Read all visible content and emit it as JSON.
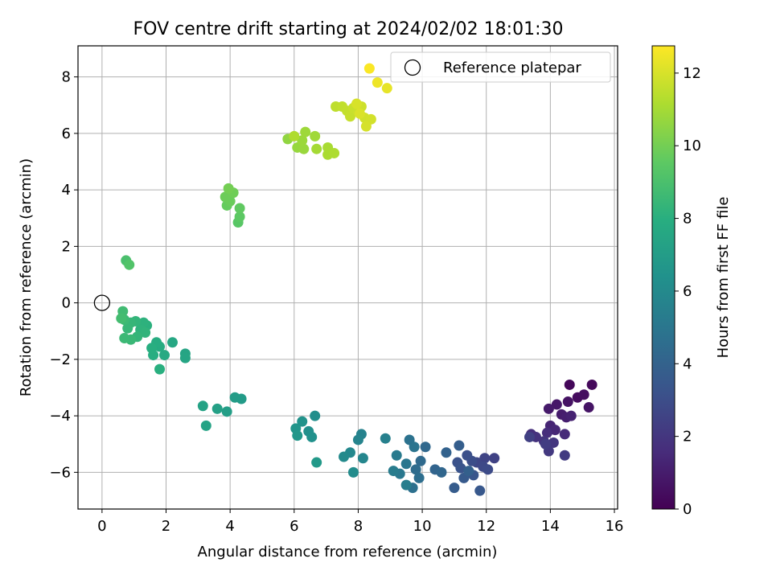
{
  "chart_data": {
    "type": "scatter",
    "title": "FOV centre drift starting at 2024/02/02 18:01:30",
    "xlabel": "Angular distance from reference (arcmin)",
    "ylabel": "Rotation from reference (arcmin)",
    "xlim": [
      -0.75,
      16.1
    ],
    "ylim": [
      -7.3,
      9.1
    ],
    "xticks": [
      "0",
      "2",
      "4",
      "6",
      "8",
      "10",
      "12",
      "14",
      "16"
    ],
    "yticks": [
      "−6",
      "−4",
      "−2",
      "0",
      "2",
      "4",
      "6",
      "8"
    ],
    "grid": true,
    "legend": {
      "placement": "top-right",
      "entries": [
        "Reference platepar"
      ]
    },
    "reference_point": {
      "x": 0,
      "y": 0
    },
    "colorbar": {
      "label": "Hours from first FF file",
      "colormap": "viridis",
      "range": [
        0,
        12.75
      ],
      "ticks": [
        "0",
        "2",
        "4",
        "6",
        "8",
        "10",
        "12"
      ]
    },
    "points": [
      [
        14.6,
        -2.9,
        0.2
      ],
      [
        15.3,
        -2.9,
        0.3
      ],
      [
        14.85,
        -3.35,
        0.4
      ],
      [
        15.05,
        -3.25,
        0.5
      ],
      [
        14.55,
        -3.5,
        0.6
      ],
      [
        15.2,
        -3.7,
        0.7
      ],
      [
        14.2,
        -3.6,
        0.8
      ],
      [
        13.95,
        -3.75,
        0.9
      ],
      [
        14.35,
        -3.95,
        1.0
      ],
      [
        14.5,
        -4.05,
        1.1
      ],
      [
        14.65,
        -4.0,
        1.2
      ],
      [
        14.0,
        -4.35,
        1.3
      ],
      [
        14.15,
        -4.5,
        1.4
      ],
      [
        14.45,
        -4.65,
        1.5
      ],
      [
        13.9,
        -4.6,
        1.6
      ],
      [
        13.4,
        -4.65,
        1.7
      ],
      [
        13.55,
        -4.75,
        1.8
      ],
      [
        13.8,
        -4.9,
        1.9
      ],
      [
        14.1,
        -4.95,
        2.0
      ],
      [
        13.95,
        -5.25,
        2.1
      ],
      [
        14.45,
        -5.4,
        2.2
      ],
      [
        13.85,
        -5.0,
        2.3
      ],
      [
        13.35,
        -4.75,
        2.4
      ],
      [
        12.25,
        -5.5,
        2.5
      ],
      [
        11.95,
        -5.5,
        2.6
      ],
      [
        11.7,
        -5.65,
        2.7
      ],
      [
        11.9,
        -5.8,
        2.8
      ],
      [
        12.05,
        -5.9,
        2.9
      ],
      [
        11.55,
        -5.6,
        3.0
      ],
      [
        11.4,
        -5.4,
        3.1
      ],
      [
        11.1,
        -5.65,
        3.2
      ],
      [
        11.2,
        -5.85,
        3.3
      ],
      [
        11.6,
        -6.1,
        3.4
      ],
      [
        11.8,
        -6.65,
        3.5
      ],
      [
        11.3,
        -6.2,
        3.6
      ],
      [
        11.0,
        -6.55,
        3.7
      ],
      [
        11.15,
        -5.05,
        3.8
      ],
      [
        11.45,
        -5.95,
        3.9
      ],
      [
        10.75,
        -5.3,
        4.0
      ],
      [
        10.4,
        -5.9,
        4.1
      ],
      [
        10.6,
        -6.0,
        4.2
      ],
      [
        10.1,
        -5.1,
        4.3
      ],
      [
        9.95,
        -5.6,
        4.4
      ],
      [
        9.8,
        -5.9,
        4.5
      ],
      [
        9.9,
        -6.2,
        4.6
      ],
      [
        9.7,
        -6.55,
        4.7
      ],
      [
        9.6,
        -4.85,
        4.8
      ],
      [
        9.75,
        -5.1,
        4.9
      ],
      [
        9.5,
        -5.7,
        5.0
      ],
      [
        9.3,
        -6.05,
        5.1
      ],
      [
        9.2,
        -5.4,
        5.2
      ],
      [
        9.1,
        -5.95,
        5.3
      ],
      [
        9.5,
        -6.45,
        5.4
      ],
      [
        8.85,
        -4.8,
        5.5
      ],
      [
        8.1,
        -4.65,
        5.6
      ],
      [
        8.0,
        -4.85,
        5.7
      ],
      [
        8.15,
        -5.5,
        5.8
      ],
      [
        7.75,
        -5.3,
        5.9
      ],
      [
        7.55,
        -5.45,
        6.0
      ],
      [
        7.85,
        -6.0,
        6.1
      ],
      [
        6.65,
        -4.0,
        6.2
      ],
      [
        6.45,
        -4.55,
        6.3
      ],
      [
        6.55,
        -4.75,
        6.4
      ],
      [
        6.25,
        -4.2,
        6.5
      ],
      [
        6.05,
        -4.45,
        6.6
      ],
      [
        6.1,
        -4.7,
        6.7
      ],
      [
        6.7,
        -5.65,
        6.8
      ],
      [
        4.35,
        -3.4,
        6.9
      ],
      [
        4.15,
        -3.35,
        7.0
      ],
      [
        3.9,
        -3.85,
        7.1
      ],
      [
        3.6,
        -3.75,
        7.2
      ],
      [
        3.15,
        -3.65,
        7.3
      ],
      [
        3.25,
        -4.35,
        7.35
      ],
      [
        2.6,
        -1.8,
        7.4
      ],
      [
        2.6,
        -1.95,
        7.5
      ],
      [
        2.2,
        -1.4,
        7.6
      ],
      [
        1.95,
        -1.85,
        7.7
      ],
      [
        1.8,
        -1.55,
        7.8
      ],
      [
        1.7,
        -1.4,
        7.85
      ],
      [
        1.6,
        -1.85,
        7.9
      ],
      [
        1.55,
        -1.6,
        7.95
      ],
      [
        1.8,
        -2.35,
        8.0
      ],
      [
        1.4,
        -0.8,
        8.1
      ],
      [
        1.3,
        -0.7,
        8.15
      ],
      [
        1.2,
        -0.95,
        8.2
      ],
      [
        1.35,
        -1.05,
        8.25
      ],
      [
        1.05,
        -0.65,
        8.3
      ],
      [
        1.1,
        -1.2,
        8.35
      ],
      [
        0.9,
        -0.7,
        8.4
      ],
      [
        0.8,
        -0.9,
        8.45
      ],
      [
        0.9,
        -1.3,
        8.5
      ],
      [
        0.7,
        -1.25,
        8.55
      ],
      [
        0.7,
        -0.6,
        8.6
      ],
      [
        0.65,
        -0.3,
        8.7
      ],
      [
        0.6,
        -0.55,
        8.8
      ],
      [
        0.75,
        1.5,
        9.0
      ],
      [
        0.85,
        1.35,
        9.2
      ],
      [
        4.25,
        2.85,
        9.4
      ],
      [
        4.3,
        3.05,
        9.5
      ],
      [
        4.3,
        3.35,
        9.6
      ],
      [
        3.9,
        3.45,
        9.7
      ],
      [
        4.0,
        3.6,
        9.8
      ],
      [
        3.85,
        3.75,
        9.85
      ],
      [
        4.1,
        3.9,
        9.9
      ],
      [
        3.95,
        4.05,
        10.0
      ],
      [
        5.8,
        5.8,
        10.6
      ],
      [
        6.1,
        5.5,
        10.7
      ],
      [
        6.3,
        5.45,
        10.75
      ],
      [
        6.25,
        5.75,
        10.8
      ],
      [
        6.35,
        6.05,
        10.85
      ],
      [
        6.65,
        5.9,
        10.9
      ],
      [
        6.7,
        5.45,
        11.0
      ],
      [
        7.05,
        5.5,
        11.05
      ],
      [
        7.05,
        5.25,
        11.1
      ],
      [
        7.25,
        5.3,
        11.15
      ],
      [
        6.0,
        5.9,
        11.2
      ],
      [
        7.3,
        6.95,
        11.5
      ],
      [
        7.5,
        6.95,
        11.55
      ],
      [
        7.65,
        6.8,
        11.6
      ],
      [
        7.75,
        6.6,
        11.65
      ],
      [
        7.85,
        6.9,
        11.7
      ],
      [
        8.0,
        6.75,
        11.75
      ],
      [
        8.1,
        6.95,
        11.8
      ],
      [
        8.2,
        6.55,
        11.85
      ],
      [
        8.4,
        6.5,
        11.9
      ],
      [
        8.25,
        6.25,
        11.95
      ],
      [
        7.95,
        7.05,
        12.0
      ],
      [
        8.05,
        6.7,
        12.05
      ],
      [
        8.9,
        7.6,
        12.3
      ],
      [
        8.6,
        7.8,
        12.45
      ],
      [
        8.35,
        8.3,
        12.7
      ]
    ]
  }
}
